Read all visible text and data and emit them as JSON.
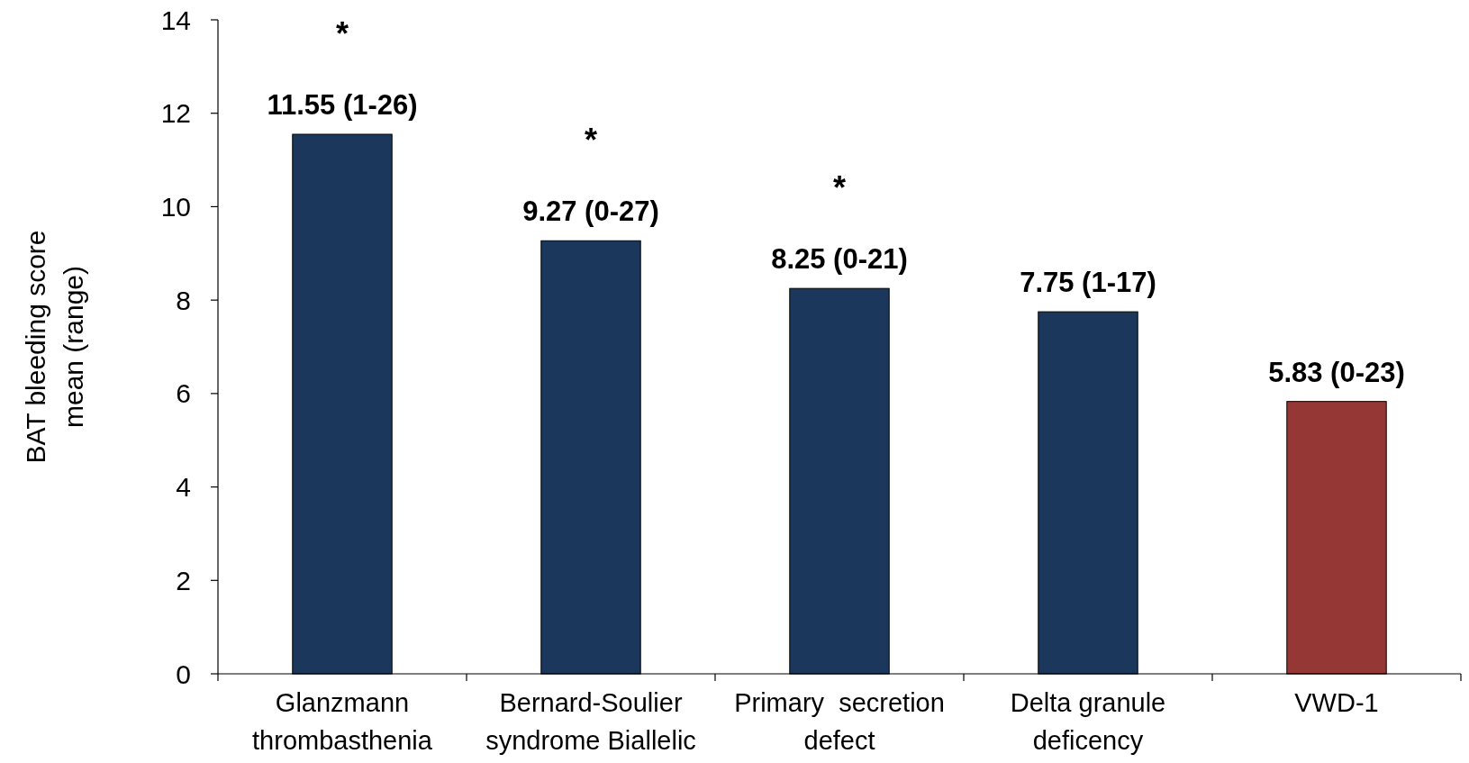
{
  "chart_data": {
    "type": "bar",
    "ylabel": "BAT bleeding score mean (range)",
    "categories": [
      "Glanzmann thrombasthenia",
      "Bernard-Soulier syndrome Biallelic",
      "Primary  secretion defect",
      "Delta granule deficency",
      "VWD-1"
    ],
    "values": [
      11.55,
      9.27,
      8.25,
      7.75,
      5.83
    ],
    "colors": [
      "#1b375c",
      "#1b375c",
      "#1b375c",
      "#1b375c",
      "#953735"
    ],
    "value_labels": [
      "11.55 (1-26)",
      "9.27 (0-27)",
      "8.25 (0-21)",
      "7.75 (1-17)",
      "5.83 (0-23)"
    ],
    "annotations": [
      "*",
      "*",
      "*"
    ],
    "ylim": [
      0,
      14
    ],
    "yticks": [
      0,
      2,
      4,
      6,
      8,
      10,
      12,
      14
    ],
    "grid": false
  }
}
